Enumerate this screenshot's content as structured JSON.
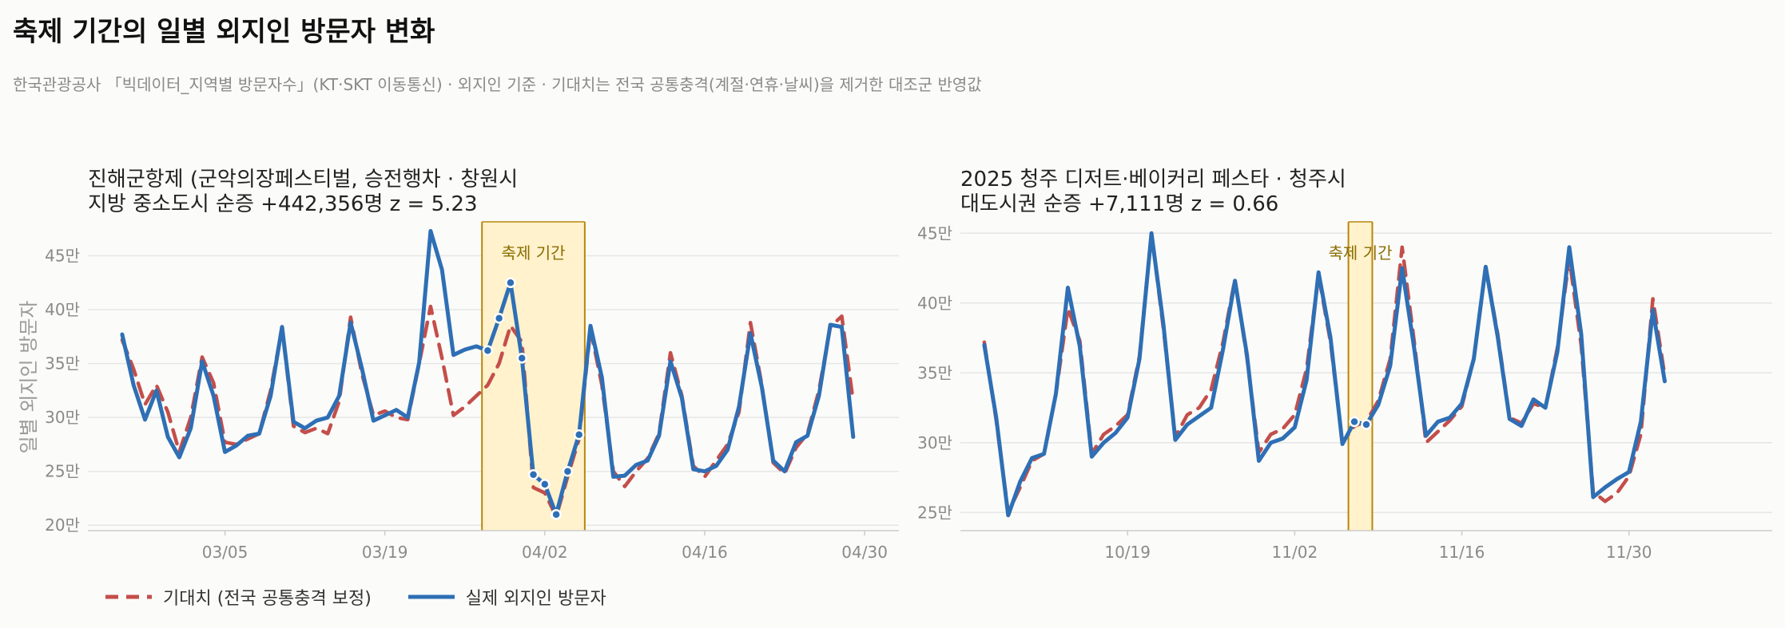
{
  "title": "축제 기간의 일별 외지인 방문자 변화",
  "subtitle": "한국관광공사 「빅데이터_지역별 방문자수」(KT·SKT 이동통신) · 외지인 기준 · 기대치는 전국 공통충격(계절·연휴·날씨)을 제거한 대조군 반영값",
  "legend": [
    {
      "label": "기대치 (전국 공통충격 보정)",
      "color": "#c44e4a",
      "style": "dashed"
    },
    {
      "label": "실제 외지인 방문자",
      "color": "#2e6fb5",
      "style": "solid"
    }
  ],
  "colors": {
    "actual": "#2e6fb5",
    "expected": "#c44e4a",
    "festival_fill": "#fff2cc",
    "festival_edge": "#b8860b"
  },
  "chart_data": [
    {
      "type": "line",
      "title_line1": "진해군항제 (군악의장페스티벌, 승전행차  ·  창원시",
      "title_line2": "지방 중소도시   순증 +442,356명   z = 5.23",
      "ylabel": "일별 외지인 방문자",
      "festival_label": "축제 기간",
      "x_start": "2025-02-24",
      "xlim": [
        "2025-02-21",
        "2025-05-03"
      ],
      "ylim": [
        195000,
        480000
      ],
      "y_ticks": [
        200000,
        250000,
        300000,
        350000,
        400000,
        450000
      ],
      "y_tick_labels": [
        "20만",
        "25만",
        "30만",
        "35만",
        "40만",
        "45만"
      ],
      "x_ticks": [
        "2025-03-05",
        "2025-03-19",
        "2025-04-02",
        "2025-04-16",
        "2025-04-30"
      ],
      "x_tick_labels": [
        "03/05",
        "03/19",
        "04/02",
        "04/16",
        "04/30"
      ],
      "festival": [
        "2025-03-28",
        "2025-04-05"
      ],
      "series": [
        {
          "name": "실제 외지인 방문자",
          "role": "actual",
          "values": [
            377000,
            330000,
            298000,
            325000,
            282000,
            263000,
            290000,
            352000,
            320000,
            268000,
            274000,
            283000,
            285000,
            320000,
            384000,
            296000,
            290000,
            297000,
            300000,
            320000,
            388000,
            345000,
            297000,
            302000,
            307000,
            300000,
            351000,
            473000,
            437000,
            358000,
            363000,
            366000,
            362000,
            392000,
            425000,
            355000,
            247000,
            238000,
            210000,
            250000,
            284000,
            385000,
            337000,
            245000,
            246000,
            256000,
            260000,
            283000,
            352000,
            318000,
            252000,
            250000,
            255000,
            270000,
            310000,
            378000,
            328000,
            260000,
            250000,
            277000,
            283000,
            320000,
            386000,
            384000,
            282000
          ]
        },
        {
          "name": "기대치 (전국 공통충격 보정)",
          "role": "expected",
          "values": [
            372000,
            345000,
            312000,
            330000,
            305000,
            268000,
            300000,
            356000,
            332000,
            277000,
            275000,
            280000,
            285000,
            325000,
            383000,
            292000,
            286000,
            290000,
            285000,
            315000,
            393000,
            340000,
            302000,
            306000,
            300000,
            298000,
            350000,
            403000,
            355000,
            302000,
            310000,
            320000,
            330000,
            350000,
            385000,
            370000,
            235000,
            230000,
            208000,
            245000,
            280000,
            382000,
            330000,
            250000,
            236000,
            250000,
            262000,
            285000,
            360000,
            320000,
            255000,
            245000,
            260000,
            275000,
            305000,
            388000,
            330000,
            258000,
            248000,
            272000,
            285000,
            325000,
            384000,
            394000,
            315000
          ]
        }
      ]
    },
    {
      "type": "line",
      "title_line1": "2025 청주 디저트·베이커리 페스타  ·  청주시",
      "title_line2": "대도시권   순증 +7,111명   z = 0.66",
      "festival_label": "축제 기간",
      "x_start": "2025-10-07",
      "xlim": [
        "2025-10-05",
        "2025-12-12"
      ],
      "ylim": [
        237000,
        457000
      ],
      "y_ticks": [
        250000,
        300000,
        350000,
        400000,
        450000
      ],
      "y_tick_labels": [
        "25만",
        "30만",
        "35만",
        "40만",
        "45만"
      ],
      "x_ticks": [
        "2025-10-19",
        "2025-11-02",
        "2025-11-16",
        "2025-11-30"
      ],
      "x_tick_labels": [
        "10/19",
        "11/02",
        "11/16",
        "11/30"
      ],
      "festival": [
        "2025-11-07",
        "2025-11-08"
      ],
      "series": [
        {
          "name": "실제 외지인 방문자",
          "role": "actual",
          "values": [
            370000,
            318000,
            248000,
            272000,
            289000,
            292000,
            335000,
            411000,
            369000,
            290000,
            300000,
            307000,
            318000,
            360000,
            450000,
            385000,
            302000,
            313000,
            319000,
            325000,
            367000,
            416000,
            363000,
            287000,
            300000,
            303000,
            311000,
            345000,
            422000,
            375000,
            299000,
            315000,
            313000,
            327000,
            355000,
            425000,
            368000,
            305000,
            315000,
            318000,
            328000,
            360000,
            426000,
            376000,
            317000,
            312000,
            331000,
            325000,
            365000,
            440000,
            378000,
            261000,
            268000,
            274000,
            279000,
            315000,
            395000,
            344000
          ]
        },
        {
          "name": "기대치 (전국 공통충격 보정)",
          "role": "expected",
          "values": [
            372000,
            316000,
            250000,
            268000,
            287000,
            292000,
            335000,
            396000,
            373000,
            292000,
            306000,
            312000,
            320000,
            362000,
            450000,
            382000,
            304000,
            320000,
            325000,
            338000,
            372000,
            417000,
            361000,
            293000,
            306000,
            310000,
            320000,
            353000,
            420000,
            372000,
            300000,
            312000,
            315000,
            330000,
            360000,
            440000,
            373000,
            300000,
            308000,
            316000,
            326000,
            360000,
            426000,
            378000,
            318000,
            314000,
            328000,
            325000,
            368000,
            432000,
            370000,
            265000,
            258000,
            264000,
            276000,
            306000,
            403000,
            348000
          ]
        }
      ]
    }
  ]
}
